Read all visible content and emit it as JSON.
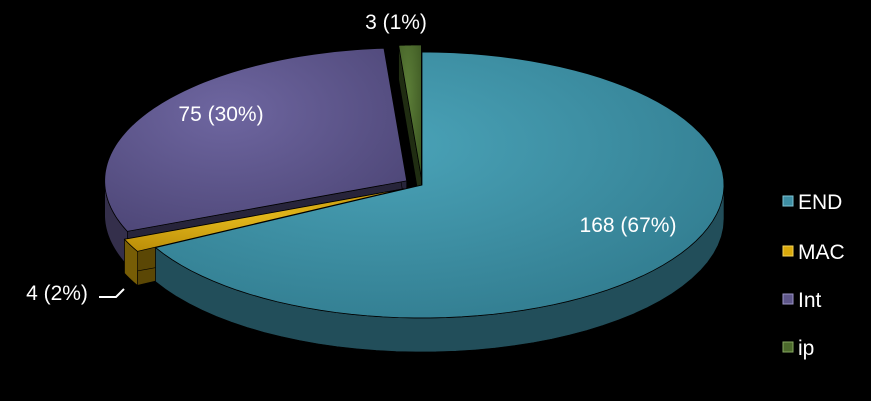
{
  "chart_data": {
    "type": "pie",
    "style": "3d-exploded",
    "categories": [
      "END",
      "MAC",
      "Int",
      "ip"
    ],
    "values": [
      168,
      4,
      75,
      3
    ],
    "percent_labels": [
      "67%",
      "2%",
      "30%",
      "1%"
    ],
    "data_labels": [
      "168 (67%)",
      "4 (2%)",
      "75 (30%)",
      "3 (1%)"
    ],
    "colors": {
      "END": "#3e8ea3",
      "MAC": "#d9a90b",
      "Int": "#5e5689",
      "ip": "#4c6a2c"
    },
    "legend": {
      "position": "right",
      "entries": [
        "END",
        "MAC",
        "Int",
        "ip"
      ]
    },
    "title": ""
  }
}
